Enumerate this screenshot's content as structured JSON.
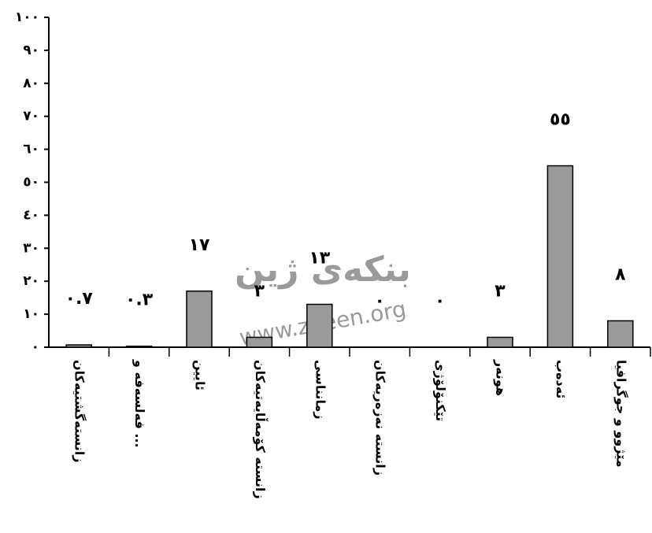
{
  "chart_data": {
    "type": "bar",
    "categories": [
      "زانستەگشتیەکان",
      "فەلسەفە و ...",
      "ئایین",
      "زانستە کۆمەڵایەتیەکان",
      "زمانناسی",
      "زانستە نەزەریەکان",
      "تێکنۆلۆژی",
      "هونەر",
      "ئەدەب",
      "مێژوو و جوگرافیا"
    ],
    "values": [
      0.7,
      0.3,
      17,
      3,
      13,
      0,
      0,
      3,
      55,
      8
    ],
    "value_labels": [
      "٠.٧",
      "٠.٣",
      "١٧",
      "٣",
      "١٣",
      "٠",
      "٠",
      "٣",
      "٥٥",
      "٨"
    ],
    "color": "#999999",
    "ylim": [
      0,
      100
    ],
    "yticks": [
      {
        "value": 0,
        "label": "٠"
      },
      {
        "value": 10,
        "label": "١٠"
      },
      {
        "value": 20,
        "label": "٢٠"
      },
      {
        "value": 30,
        "label": "٣٠"
      },
      {
        "value": 40,
        "label": "٤٠"
      },
      {
        "value": 50,
        "label": "٥٠"
      },
      {
        "value": 60,
        "label": "٦٠"
      },
      {
        "value": 70,
        "label": "٧٠"
      },
      {
        "value": 80,
        "label": "٨٠"
      },
      {
        "value": 90,
        "label": "٩٠"
      },
      {
        "value": 100,
        "label": "١٠٠"
      }
    ],
    "grid": false,
    "watermark": {
      "title": "بنکەی ژین",
      "url": "www.zheen.org"
    }
  }
}
